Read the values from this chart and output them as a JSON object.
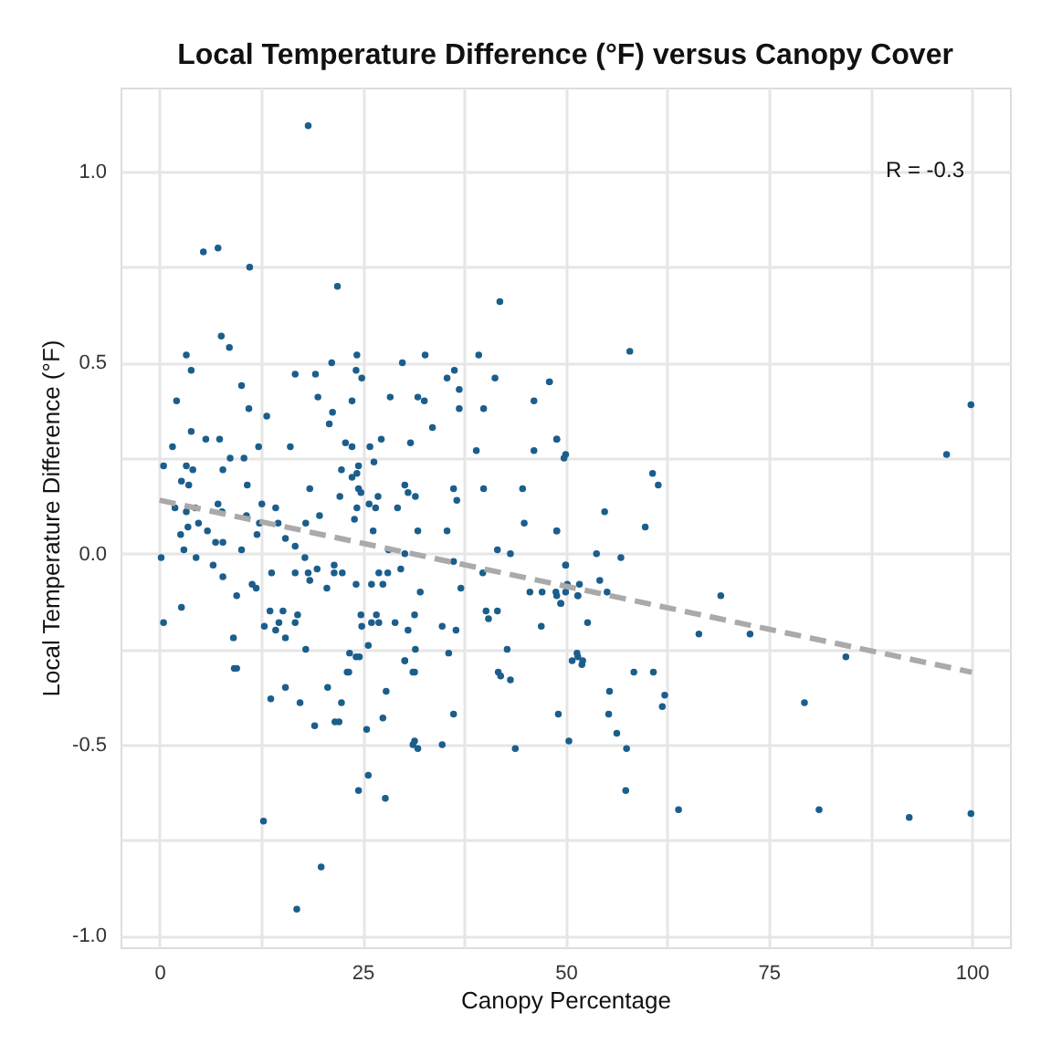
{
  "chart_data": {
    "type": "scatter",
    "title": "Local Temperature Difference (°F) versus Canopy Cover",
    "xlabel": "Canopy Percentage",
    "ylabel": "Local Temperature Difference (°F)",
    "xlim": [
      -4.8,
      104.7
    ],
    "ylim": [
      -1.03,
      1.22
    ],
    "xticks": [
      0,
      {
        "value": 12.5,
        "label": null
      },
      25,
      {
        "value": 37.5,
        "label": null
      },
      50,
      {
        "value": 62.5,
        "label": null
      },
      75,
      {
        "value": 87.5,
        "label": null
      },
      100
    ],
    "yticks": [
      {
        "value": -1,
        "label": "-1.0"
      },
      {
        "value": -0.75,
        "label": null
      },
      {
        "value": -0.5,
        "label": "-0.5"
      },
      {
        "value": -0.25,
        "label": null
      },
      {
        "value": 0,
        "label": "0.0"
      },
      {
        "value": 0.25,
        "label": null
      },
      {
        "value": 0.5,
        "label": "0.5"
      },
      {
        "value": 0.75,
        "label": null
      },
      {
        "value": 1,
        "label": "1.0"
      }
    ],
    "grid": true,
    "marker": "circle",
    "annotations": [
      "R = -0.3"
    ],
    "series": [
      {
        "color": "#1b5e8c",
        "x": [
          21.9,
          41.9,
          7.6,
          8.6,
          3.3,
          3.9,
          10.1,
          2.1,
          11.0,
          13.2,
          3.9,
          5.7,
          7.4,
          1.6,
          12.2,
          16.1,
          8.7,
          10.4,
          0.5,
          3.3,
          4.1,
          7.8,
          10.8,
          2.7,
          3.6,
          1.9,
          7.2,
          4.4,
          3.3,
          7.7,
          10.7,
          12.6,
          14.3,
          3.5,
          4.8,
          5.9,
          2.6,
          6.9,
          7.8,
          3.0,
          0.2,
          4.5,
          6.6,
          7.8,
          0.5,
          2.7,
          9.1,
          11.4,
          11.9,
          9.5,
          10.1,
          12.3,
          12.0,
          13.8,
          15.5,
          14.6,
          16.7,
          18.5,
          17.9,
          16.7,
          18.3,
          19.4,
          18.5,
          20.6,
          21.5,
          21.5,
          22.5,
          19.7,
          18.0,
          16.7,
          19.2,
          21.2,
          19.5,
          21.3,
          20.9,
          23.7,
          24.3,
          24.2,
          24.9,
          22.9,
          23.7,
          22.4,
          24.5,
          24.3,
          23.7,
          24.5,
          24.8,
          22.2,
          24.3,
          24.0,
          25.8,
          26.6,
          26.9,
          25.9,
          26.4,
          27.3,
          28.4,
          29.9,
          32.7,
          31.8,
          32.6,
          33.6,
          30.9,
          30.2,
          30.6,
          31.5,
          29.3,
          26.3,
          28.2,
          30.2,
          29.7,
          27.0,
          28.1,
          26.1,
          27.5,
          24.2,
          31.8,
          32.1,
          35.4,
          36.3,
          36.9,
          36.9,
          39.3,
          39.9,
          41.3,
          39.0,
          36.2,
          36.6,
          39.9,
          35.4,
          36.2,
          39.8,
          37.1,
          41.6,
          43.2,
          44.7,
          44.9,
          46.1,
          46.1,
          48.0,
          48.9,
          49.8,
          48.9,
          50.0,
          45.6,
          47.1,
          48.8,
          49.4,
          50.0,
          51.5,
          47.0,
          40.2,
          40.5,
          41.6,
          42.8,
          34.8,
          36.5,
          31.4,
          30.6,
          29.0,
          26.7,
          27.0,
          26.1,
          24.8,
          24.9,
          31.5,
          30.2,
          35.6,
          25.7,
          23.4,
          24.2,
          24.6,
          18.0,
          12.9,
          14.3,
          14.7,
          15.5,
          15.2,
          17.0,
          16.7,
          13.6,
          9.5,
          51.4,
          52.1,
          23.1,
          31.2,
          41.7,
          57.9,
          48.0,
          99.9,
          96.9,
          48.9,
          50.0,
          60.7,
          61.4,
          54.8,
          48.9,
          59.8,
          53.8,
          56.8,
          50.0,
          54.2,
          50.2,
          51.7,
          55.1,
          48.9,
          49.4,
          51.5,
          52.7,
          69.1,
          66.4,
          72.7,
          84.5,
          50.8,
          51.5,
          52.0,
          58.4,
          60.8,
          9.2,
          13.7,
          15.5,
          17.3,
          19.1,
          20.7,
          22.4,
          21.6,
          22.1,
          23.3,
          25.5,
          27.5,
          27.9,
          30.2,
          31.4,
          31.4,
          31.2,
          31.8,
          34.8,
          36.2,
          25.7,
          24.5,
          27.8,
          12.8,
          19.9,
          16.9,
          42.0,
          43.2,
          43.8,
          49.1,
          50.4,
          55.4,
          55.3,
          56.3,
          57.5,
          62.2,
          61.9,
          57.4,
          63.9,
          79.4,
          81.2,
          92.3,
          99.9,
          18.3,
          5.4,
          7.2,
          11.1
        ],
        "values": [
          0.7,
          0.66,
          0.57,
          0.54,
          0.52,
          0.48,
          0.44,
          0.4,
          0.38,
          0.36,
          0.32,
          0.3,
          0.3,
          0.28,
          0.28,
          0.28,
          0.25,
          0.25,
          0.23,
          0.23,
          0.22,
          0.22,
          0.18,
          0.19,
          0.18,
          0.12,
          0.13,
          0.12,
          0.11,
          0.11,
          0.1,
          0.13,
          0.12,
          0.07,
          0.08,
          0.06,
          0.05,
          0.03,
          0.03,
          0.01,
          -0.01,
          -0.01,
          -0.03,
          -0.06,
          -0.18,
          -0.14,
          -0.22,
          -0.08,
          -0.09,
          -0.11,
          0.01,
          0.08,
          0.05,
          -0.05,
          0.04,
          0.08,
          0.02,
          0.17,
          -0.01,
          -0.05,
          -0.05,
          -0.04,
          -0.07,
          -0.09,
          -0.03,
          -0.05,
          -0.05,
          0.1,
          0.08,
          0.47,
          0.47,
          0.5,
          0.41,
          0.37,
          0.34,
          0.4,
          0.52,
          0.48,
          0.46,
          0.29,
          0.28,
          0.22,
          0.23,
          0.21,
          0.2,
          0.17,
          0.16,
          0.15,
          0.12,
          0.09,
          0.13,
          0.12,
          0.15,
          0.28,
          0.24,
          0.3,
          0.41,
          0.5,
          0.52,
          0.41,
          0.4,
          0.33,
          0.29,
          0.18,
          0.16,
          0.15,
          0.12,
          0.06,
          0.01,
          0.0,
          -0.04,
          -0.05,
          -0.05,
          -0.08,
          -0.08,
          -0.08,
          0.06,
          -0.1,
          0.46,
          0.48,
          0.43,
          0.38,
          0.52,
          0.38,
          0.46,
          0.27,
          0.17,
          0.14,
          0.17,
          0.06,
          -0.02,
          -0.05,
          -0.09,
          0.01,
          0.0,
          0.17,
          0.08,
          0.4,
          0.27,
          0.45,
          0.3,
          0.25,
          0.06,
          -0.03,
          -0.1,
          -0.1,
          -0.1,
          -0.13,
          -0.1,
          -0.11,
          -0.19,
          -0.15,
          -0.17,
          -0.15,
          -0.25,
          -0.19,
          -0.2,
          -0.16,
          -0.2,
          -0.18,
          -0.16,
          -0.18,
          -0.18,
          -0.16,
          -0.19,
          -0.25,
          -0.28,
          -0.26,
          -0.24,
          -0.26,
          -0.27,
          -0.27,
          -0.25,
          -0.19,
          -0.2,
          -0.18,
          -0.22,
          -0.15,
          -0.16,
          -0.18,
          -0.15,
          -0.3,
          -0.26,
          -0.28,
          -0.31,
          -0.31,
          -0.31,
          0.53,
          0.45,
          0.39,
          0.26,
          0.3,
          0.26,
          0.21,
          0.18,
          0.11,
          0.06,
          0.07,
          0.0,
          -0.01,
          -0.03,
          -0.07,
          -0.08,
          -0.08,
          -0.1,
          -0.11,
          -0.13,
          -0.11,
          -0.18,
          -0.11,
          -0.21,
          -0.21,
          -0.27,
          -0.28,
          -0.27,
          -0.29,
          -0.31,
          -0.31,
          -0.3,
          -0.38,
          -0.35,
          -0.39,
          -0.45,
          -0.35,
          -0.39,
          -0.44,
          -0.44,
          -0.31,
          -0.46,
          -0.43,
          -0.36,
          -0.28,
          -0.31,
          -0.49,
          -0.5,
          -0.51,
          -0.5,
          -0.42,
          -0.58,
          -0.62,
          -0.64,
          -0.7,
          -0.82,
          -0.93,
          -0.32,
          -0.33,
          -0.51,
          -0.42,
          -0.49,
          -0.36,
          -0.42,
          -0.47,
          -0.51,
          -0.37,
          -0.4,
          -0.62,
          -0.67,
          -0.39,
          -0.67,
          -0.69,
          -0.68,
          1.12,
          0.79,
          0.8,
          0.75
        ]
      },
      {
        "type": "line",
        "color": "#aaaaaa",
        "line_style": "dashed",
        "marker": "none",
        "x": [
          0,
          100
        ],
        "values": [
          0.14,
          -0.31
        ]
      }
    ]
  }
}
